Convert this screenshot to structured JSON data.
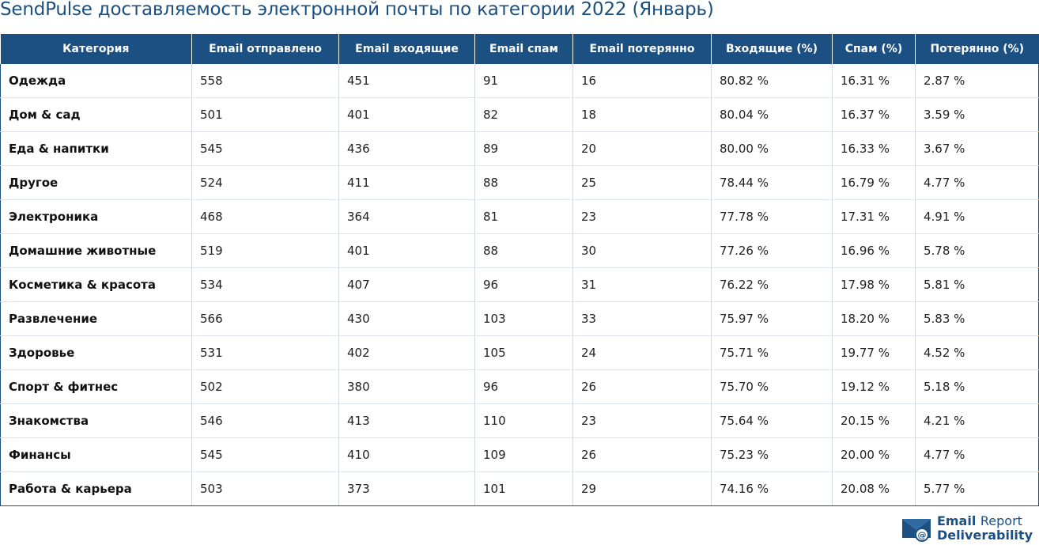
{
  "title": "SendPulse доставляемость электронной почты по категории 2022 (Январь)",
  "table": {
    "columns": [
      "Категория",
      "Email отправлено",
      "Email входящие",
      "Email спам",
      "Email потерянно",
      "Входящие (%)",
      "Спам (%)",
      "Потерянно (%)"
    ],
    "rows": [
      [
        "Одежда",
        "558",
        "451",
        "91",
        "16",
        "80.82 %",
        "16.31 %",
        "2.87 %"
      ],
      [
        "Дом & сад",
        "501",
        "401",
        "82",
        "18",
        "80.04 %",
        "16.37 %",
        "3.59 %"
      ],
      [
        "Еда & напитки",
        "545",
        "436",
        "89",
        "20",
        "80.00 %",
        "16.33 %",
        "3.67 %"
      ],
      [
        "Другое",
        "524",
        "411",
        "88",
        "25",
        "78.44 %",
        "16.79 %",
        "4.77 %"
      ],
      [
        "Электроника",
        "468",
        "364",
        "81",
        "23",
        "77.78 %",
        "17.31 %",
        "4.91 %"
      ],
      [
        "Домашние животные",
        "519",
        "401",
        "88",
        "30",
        "77.26 %",
        "16.96 %",
        "5.78 %"
      ],
      [
        "Косметика & красота",
        "534",
        "407",
        "96",
        "31",
        "76.22 %",
        "17.98 %",
        "5.81 %"
      ],
      [
        "Развлечение",
        "566",
        "430",
        "103",
        "33",
        "75.97 %",
        "18.20 %",
        "5.83 %"
      ],
      [
        "Здоровье",
        "531",
        "402",
        "105",
        "24",
        "75.71 %",
        "19.77 %",
        "4.52 %"
      ],
      [
        "Спорт & фитнес",
        "502",
        "380",
        "96",
        "26",
        "75.70 %",
        "19.12 %",
        "5.18 %"
      ],
      [
        "Знакомства",
        "546",
        "413",
        "110",
        "23",
        "75.64 %",
        "20.15 %",
        "4.21 %"
      ],
      [
        "Финансы",
        "545",
        "410",
        "109",
        "26",
        "75.23 %",
        "20.00 %",
        "4.77 %"
      ],
      [
        "Работа & карьера",
        "503",
        "373",
        "101",
        "29",
        "74.16 %",
        "20.08 %",
        "5.77 %"
      ]
    ]
  },
  "brand": {
    "line1_bold": "Email",
    "line1_light": "Report",
    "line2": "Deliverability",
    "icon": "envelope-at-icon",
    "color": "#1c5082"
  },
  "colors": {
    "header_bg": "#1c5082",
    "title": "#1b4f80"
  }
}
